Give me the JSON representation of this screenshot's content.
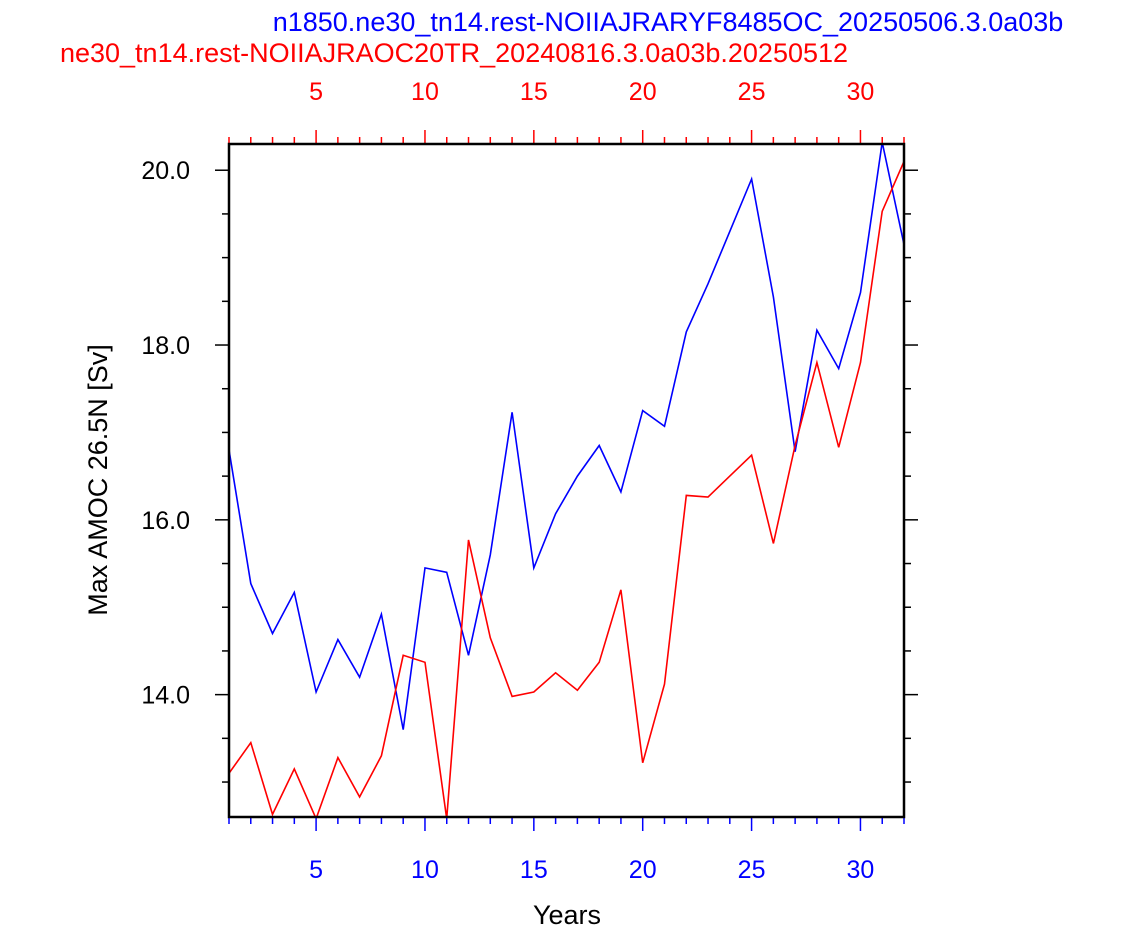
{
  "chart_data": {
    "type": "line",
    "titles": [
      {
        "text": "n1850.ne30_tn14.rest-NOIIAJRARYF8485OC_20250506.3.0a03b",
        "color": "#0000ff"
      },
      {
        "text": "ne30_tn14.rest-NOIIAJRAOC20TR_20240816.3.0a03b.20250512",
        "color": "#ff0000"
      }
    ],
    "xlabel": "Years",
    "ylabel": "Max AMOC 26.5N [Sv]",
    "xlim": [
      1,
      32
    ],
    "ylim": [
      12.6,
      20.3
    ],
    "xticks": [
      {
        "value": 5,
        "label": "5"
      },
      {
        "value": 10,
        "label": "10"
      },
      {
        "value": 15,
        "label": "15"
      },
      {
        "value": 20,
        "label": "20"
      },
      {
        "value": 25,
        "label": "25"
      },
      {
        "value": 30,
        "label": "30"
      }
    ],
    "yticks": [
      {
        "value": 14,
        "label": "14.0"
      },
      {
        "value": 16,
        "label": "16.0"
      },
      {
        "value": 18,
        "label": "18.0"
      },
      {
        "value": 20,
        "label": "20.0"
      }
    ],
    "bottom_axis_color": "#0000ff",
    "top_axis_color": "#ff0000",
    "grid": false,
    "x": [
      1,
      2,
      3,
      4,
      5,
      6,
      7,
      8,
      9,
      10,
      11,
      12,
      13,
      14,
      15,
      16,
      17,
      18,
      19,
      20,
      21,
      22,
      23,
      24,
      25,
      26,
      27,
      28,
      29,
      30,
      31,
      32
    ],
    "series": [
      {
        "color": "#0000ff",
        "values": [
          16.8,
          15.27,
          14.7,
          15.17,
          14.03,
          14.63,
          14.2,
          14.92,
          13.6,
          15.45,
          15.4,
          14.45,
          15.6,
          17.23,
          15.45,
          16.07,
          16.5,
          16.85,
          16.32,
          17.25,
          17.07,
          18.15,
          18.7,
          19.3,
          19.9,
          18.55,
          16.78,
          18.17,
          17.73,
          18.6,
          20.32,
          19.15
        ]
      },
      {
        "color": "#ff0000",
        "values": [
          13.1,
          13.45,
          12.63,
          13.15,
          12.58,
          13.28,
          12.83,
          13.3,
          14.45,
          14.37,
          12.58,
          15.77,
          14.65,
          13.98,
          14.03,
          14.25,
          14.05,
          14.37,
          15.2,
          13.22,
          14.12,
          16.28,
          16.26,
          16.5,
          16.74,
          15.73,
          16.85,
          17.8,
          16.83,
          17.8,
          19.53,
          20.1
        ]
      }
    ]
  }
}
